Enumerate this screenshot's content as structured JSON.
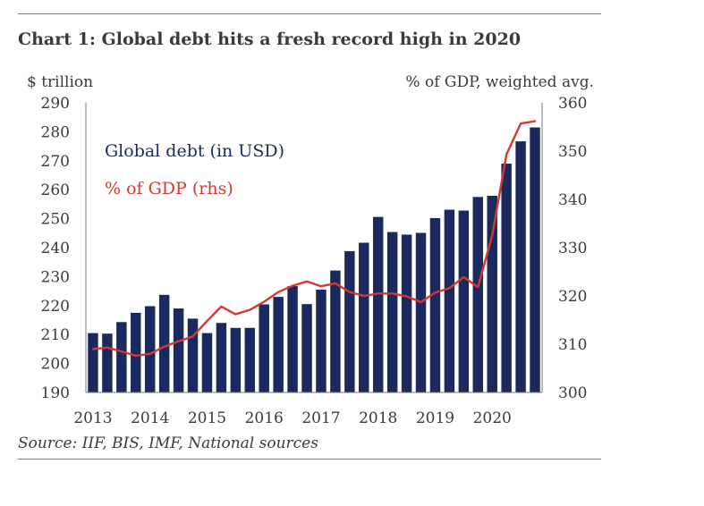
{
  "page": {
    "title": "Chart 1: Global debt hits a fresh record high in 2020",
    "source": "Source: IIF, BIS, IMF, National sources"
  },
  "colors": {
    "bar": "#1b2a5e",
    "line": "#d7372f",
    "text": "#3a3a3a",
    "axis": "#7a7a7a"
  },
  "chart_data": {
    "type": "bar",
    "title": "Chart 1: Global debt hits a fresh record high in 2020",
    "y_left_label": "$ trillion",
    "y_right_label": "% of GDP, weighted avg.",
    "y_left_ticks": [
      190,
      200,
      210,
      220,
      230,
      240,
      250,
      260,
      270,
      280,
      290
    ],
    "y_right_ticks": [
      300,
      310,
      320,
      330,
      340,
      350,
      360
    ],
    "ylim_left": [
      190,
      290
    ],
    "ylim_right": [
      300,
      360
    ],
    "x_tick_labels": [
      "2013",
      "2014",
      "2015",
      "2016",
      "2017",
      "2018",
      "2019",
      "2020"
    ],
    "x_tick_index": [
      0,
      4,
      8,
      12,
      16,
      20,
      24,
      28
    ],
    "grid": false,
    "legend_placement": "top-left",
    "series": [
      {
        "name": "Global debt (in USD)",
        "kind": "bar",
        "axis": "left",
        "color": "#1b2a5e",
        "values": [
          210.5,
          210.3,
          214.3,
          217.5,
          219.8,
          223.7,
          219.0,
          215.5,
          210.5,
          214.0,
          212.3,
          212.3,
          220.4,
          223.0,
          226.7,
          220.5,
          225.5,
          232.1,
          238.8,
          241.7,
          250.6,
          245.4,
          244.5,
          245.1,
          250.2,
          253.1,
          252.8,
          257.5,
          257.9,
          269.0,
          276.7,
          281.5
        ]
      },
      {
        "name": "% of GDP (rhs)",
        "kind": "line",
        "axis": "right",
        "color": "#d7372f",
        "values": [
          309.0,
          309.3,
          308.5,
          307.6,
          308.0,
          309.5,
          310.6,
          311.6,
          314.8,
          317.8,
          316.2,
          317.1,
          318.8,
          320.8,
          322.1,
          323.0,
          322.0,
          322.6,
          320.8,
          320.0,
          320.5,
          320.5,
          319.9,
          318.7,
          320.7,
          321.6,
          323.9,
          321.8,
          332.5,
          349.3,
          355.7,
          356.2
        ]
      }
    ]
  }
}
